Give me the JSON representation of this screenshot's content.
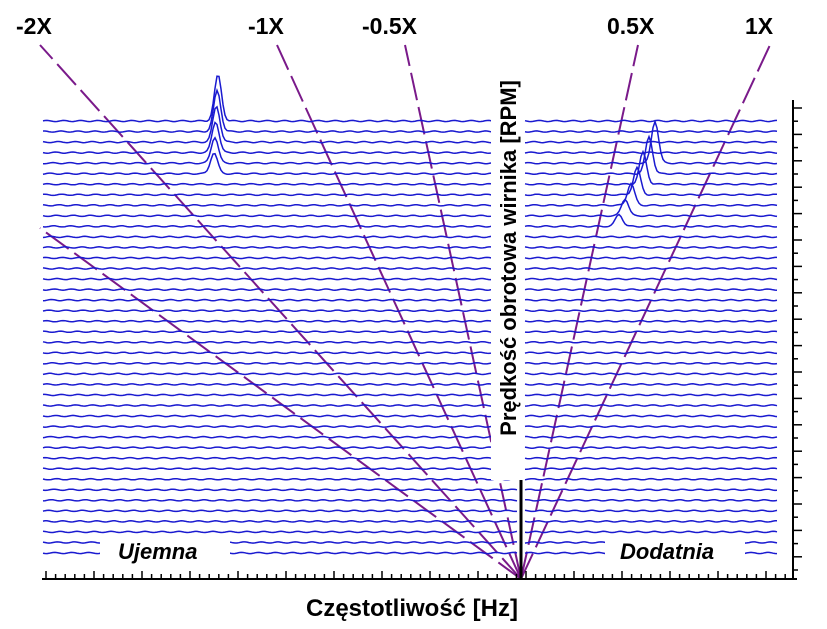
{
  "chart_data": {
    "type": "waterfall",
    "title": "",
    "xlabel": "Częstotliwość [Hz]",
    "ylabel": "Prędkość obrotowa wirnika [RPM]",
    "region_labels": {
      "negative": "Ujemna",
      "positive": "Dodatnia"
    },
    "order_lines": [
      {
        "label": "-2X",
        "order": -2
      },
      {
        "label": "-1X",
        "order": -1
      },
      {
        "label": "-0.5X",
        "order": -0.5
      },
      {
        "label": "0.5X",
        "order": 0.5
      },
      {
        "label": "1X",
        "order": 1
      }
    ],
    "trace_count": 42,
    "peaks": [
      {
        "region": "negative",
        "near_order": "-1X",
        "visible_in_traces_from_top": [
          1,
          6
        ]
      },
      {
        "region": "positive",
        "near_order": "1X",
        "visible_in_traces_from_top": [
          5,
          11
        ]
      }
    ],
    "colors": {
      "trace": "#1a1ad0",
      "order_line": "#7a1a8a",
      "axis": "#000000"
    },
    "grid": false
  }
}
